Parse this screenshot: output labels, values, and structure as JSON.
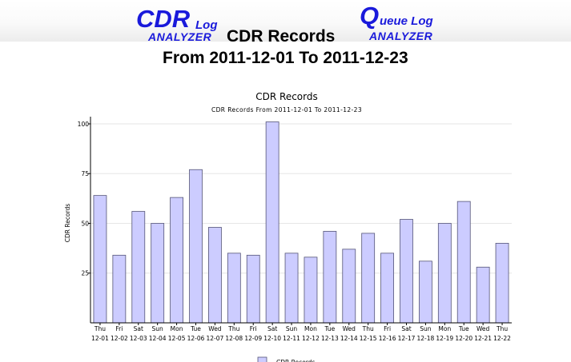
{
  "header": {
    "cdr_logo": {
      "main": "CDR",
      "small": "Log",
      "sub": "ANALYZER"
    },
    "queue_logo": {
      "main": "Q",
      "small": "ueue Log",
      "sub": "ANALYZER"
    },
    "title": "CDR Records",
    "range": "From 2011-12-01 To 2011-12-23"
  },
  "colors": {
    "brand": "#1a1adb",
    "bar_fill": "#ccccff",
    "bar_stroke": "#555577",
    "grid": "#e6e6e6"
  },
  "chart_data": {
    "type": "bar",
    "title": "CDR Records",
    "subtitle": "CDR Records From 2011-12-01 To 2011-12-23",
    "xlabel": "",
    "ylabel": "CDR Records",
    "ylim": [
      0,
      100
    ],
    "yticks": [
      25,
      50,
      75,
      100
    ],
    "categories": [
      {
        "day": "Thu",
        "date": "12-01"
      },
      {
        "day": "Fri",
        "date": "12-02"
      },
      {
        "day": "Sat",
        "date": "12-03"
      },
      {
        "day": "Sun",
        "date": "12-04"
      },
      {
        "day": "Mon",
        "date": "12-05"
      },
      {
        "day": "Tue",
        "date": "12-06"
      },
      {
        "day": "Wed",
        "date": "12-07"
      },
      {
        "day": "Thu",
        "date": "12-08"
      },
      {
        "day": "Fri",
        "date": "12-09"
      },
      {
        "day": "Sat",
        "date": "12-10"
      },
      {
        "day": "Sun",
        "date": "12-11"
      },
      {
        "day": "Mon",
        "date": "12-12"
      },
      {
        "day": "Tue",
        "date": "12-13"
      },
      {
        "day": "Wed",
        "date": "12-14"
      },
      {
        "day": "Thu",
        "date": "12-15"
      },
      {
        "day": "Fri",
        "date": "12-16"
      },
      {
        "day": "Sat",
        "date": "12-17"
      },
      {
        "day": "Sun",
        "date": "12-18"
      },
      {
        "day": "Mon",
        "date": "12-19"
      },
      {
        "day": "Tue",
        "date": "12-20"
      },
      {
        "day": "Wed",
        "date": "12-21"
      },
      {
        "day": "Thu",
        "date": "12-22"
      }
    ],
    "series": [
      {
        "name": "CDR Records",
        "values": [
          64,
          34,
          56,
          50,
          63,
          77,
          48,
          35,
          34,
          101,
          35,
          33,
          46,
          37,
          45,
          35,
          52,
          31,
          50,
          61,
          28,
          40
        ]
      }
    ],
    "grid": true,
    "legend": "bottom"
  }
}
